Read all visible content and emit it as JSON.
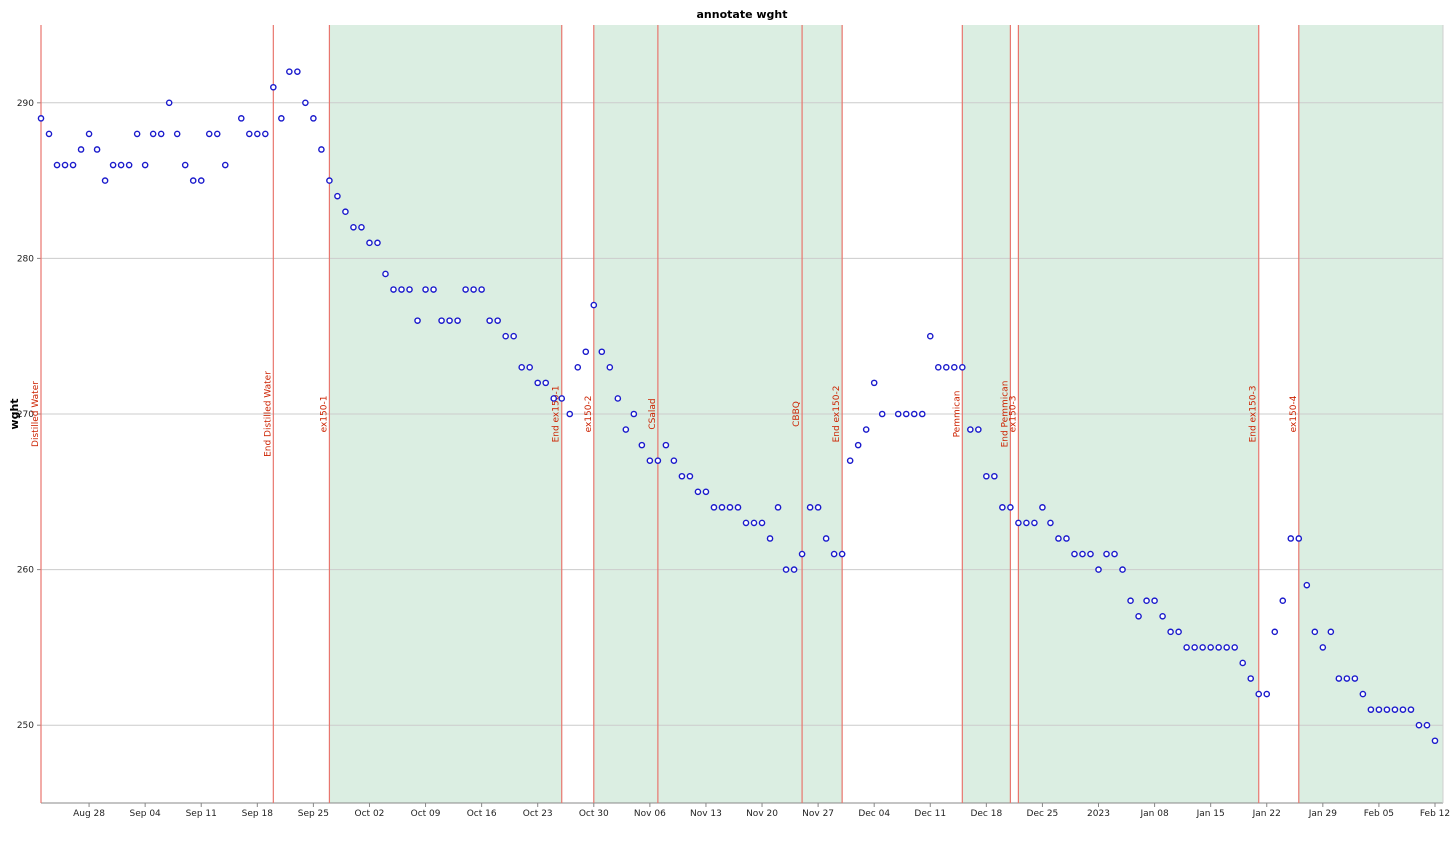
{
  "chart_data": {
    "type": "scatter",
    "title": "annotate wght",
    "xlabel": "",
    "ylabel": "wght",
    "x_start": "2022-08-22",
    "x_end": "2023-02-13",
    "ylim": [
      245,
      295
    ],
    "y_ticks": [
      250,
      260,
      270,
      280,
      290
    ],
    "grid": true,
    "x_ticks": [
      {
        "date": "2022-08-28",
        "label": "Aug 28"
      },
      {
        "date": "2022-09-04",
        "label": "Sep 04"
      },
      {
        "date": "2022-09-11",
        "label": "Sep 11"
      },
      {
        "date": "2022-09-18",
        "label": "Sep 18"
      },
      {
        "date": "2022-09-25",
        "label": "Sep 25"
      },
      {
        "date": "2022-10-02",
        "label": "Oct 02"
      },
      {
        "date": "2022-10-09",
        "label": "Oct 09"
      },
      {
        "date": "2022-10-16",
        "label": "Oct 16"
      },
      {
        "date": "2022-10-23",
        "label": "Oct 23"
      },
      {
        "date": "2022-10-30",
        "label": "Oct 30"
      },
      {
        "date": "2022-11-06",
        "label": "Nov 06"
      },
      {
        "date": "2022-11-13",
        "label": "Nov 13"
      },
      {
        "date": "2022-11-20",
        "label": "Nov 20"
      },
      {
        "date": "2022-11-27",
        "label": "Nov 27"
      },
      {
        "date": "2022-12-04",
        "label": "Dec 04"
      },
      {
        "date": "2022-12-11",
        "label": "Dec 11"
      },
      {
        "date": "2022-12-18",
        "label": "Dec 18"
      },
      {
        "date": "2022-12-25",
        "label": "Dec 25"
      },
      {
        "date": "2023-01-01",
        "label": "2023"
      },
      {
        "date": "2023-01-08",
        "label": "Jan 08"
      },
      {
        "date": "2023-01-15",
        "label": "Jan 15"
      },
      {
        "date": "2023-01-22",
        "label": "Jan 22"
      },
      {
        "date": "2023-01-29",
        "label": "Jan 29"
      },
      {
        "date": "2023-02-05",
        "label": "Feb 05"
      },
      {
        "date": "2023-02-12",
        "label": "Feb 12"
      }
    ],
    "shaded_ranges": [
      {
        "start": "2022-09-27",
        "end": "2022-10-26"
      },
      {
        "start": "2022-10-30",
        "end": "2022-11-07"
      },
      {
        "start": "2022-11-07",
        "end": "2022-11-25"
      },
      {
        "start": "2022-11-25",
        "end": "2022-11-30"
      },
      {
        "start": "2022-12-15",
        "end": "2022-12-21"
      },
      {
        "start": "2022-12-22",
        "end": "2023-01-21"
      },
      {
        "start": "2023-01-26",
        "end": "2023-02-13"
      }
    ],
    "annotations": [
      {
        "date": "2022-08-22",
        "label": "Distilled Water"
      },
      {
        "date": "2022-09-20",
        "label": "End Distilled Water"
      },
      {
        "date": "2022-09-27",
        "label": "ex150-1"
      },
      {
        "date": "2022-10-26",
        "label": "End ex150-1"
      },
      {
        "date": "2022-10-30",
        "label": "ex150-2"
      },
      {
        "date": "2022-11-07",
        "label": "CSalad"
      },
      {
        "date": "2022-11-25",
        "label": "CBBQ"
      },
      {
        "date": "2022-11-30",
        "label": "End ex150-2"
      },
      {
        "date": "2022-12-15",
        "label": "Pemmican"
      },
      {
        "date": "2022-12-21",
        "label": "End Pemmican"
      },
      {
        "date": "2022-12-22",
        "label": "ex150-3"
      },
      {
        "date": "2023-01-21",
        "label": "End ex150-3"
      },
      {
        "date": "2023-01-26",
        "label": "ex150-4"
      }
    ],
    "colors": {
      "points": "#1a1acc",
      "annotation_line": "#e8766e",
      "annotation_text": "#cc2200",
      "shade": "#dbeee2",
      "grid": "#cccccc"
    },
    "points": [
      {
        "x": "2022-08-22",
        "y": 289
      },
      {
        "x": "2022-08-23",
        "y": 288
      },
      {
        "x": "2022-08-24",
        "y": 286
      },
      {
        "x": "2022-08-25",
        "y": 286
      },
      {
        "x": "2022-08-26",
        "y": 286
      },
      {
        "x": "2022-08-27",
        "y": 287
      },
      {
        "x": "2022-08-28",
        "y": 288
      },
      {
        "x": "2022-08-29",
        "y": 287
      },
      {
        "x": "2022-08-30",
        "y": 285
      },
      {
        "x": "2022-08-31",
        "y": 286
      },
      {
        "x": "2022-09-01",
        "y": 286
      },
      {
        "x": "2022-09-02",
        "y": 286
      },
      {
        "x": "2022-09-03",
        "y": 288
      },
      {
        "x": "2022-09-04",
        "y": 286
      },
      {
        "x": "2022-09-05",
        "y": 288
      },
      {
        "x": "2022-09-06",
        "y": 288
      },
      {
        "x": "2022-09-07",
        "y": 290
      },
      {
        "x": "2022-09-08",
        "y": 288
      },
      {
        "x": "2022-09-09",
        "y": 286
      },
      {
        "x": "2022-09-10",
        "y": 285
      },
      {
        "x": "2022-09-11",
        "y": 285
      },
      {
        "x": "2022-09-12",
        "y": 288
      },
      {
        "x": "2022-09-13",
        "y": 288
      },
      {
        "x": "2022-09-14",
        "y": 286
      },
      {
        "x": "2022-09-16",
        "y": 289
      },
      {
        "x": "2022-09-17",
        "y": 288
      },
      {
        "x": "2022-09-18",
        "y": 288
      },
      {
        "x": "2022-09-19",
        "y": 288
      },
      {
        "x": "2022-09-20",
        "y": 291
      },
      {
        "x": "2022-09-21",
        "y": 289
      },
      {
        "x": "2022-09-22",
        "y": 292
      },
      {
        "x": "2022-09-23",
        "y": 292
      },
      {
        "x": "2022-09-24",
        "y": 290
      },
      {
        "x": "2022-09-25",
        "y": 289
      },
      {
        "x": "2022-09-26",
        "y": 287
      },
      {
        "x": "2022-09-27",
        "y": 285
      },
      {
        "x": "2022-09-28",
        "y": 284
      },
      {
        "x": "2022-09-29",
        "y": 283
      },
      {
        "x": "2022-09-30",
        "y": 282
      },
      {
        "x": "2022-10-01",
        "y": 282
      },
      {
        "x": "2022-10-02",
        "y": 281
      },
      {
        "x": "2022-10-03",
        "y": 281
      },
      {
        "x": "2022-10-04",
        "y": 279
      },
      {
        "x": "2022-10-05",
        "y": 278
      },
      {
        "x": "2022-10-06",
        "y": 278
      },
      {
        "x": "2022-10-07",
        "y": 278
      },
      {
        "x": "2022-10-08",
        "y": 276
      },
      {
        "x": "2022-10-09",
        "y": 278
      },
      {
        "x": "2022-10-10",
        "y": 278
      },
      {
        "x": "2022-10-11",
        "y": 276
      },
      {
        "x": "2022-10-12",
        "y": 276
      },
      {
        "x": "2022-10-13",
        "y": 276
      },
      {
        "x": "2022-10-14",
        "y": 278
      },
      {
        "x": "2022-10-15",
        "y": 278
      },
      {
        "x": "2022-10-16",
        "y": 278
      },
      {
        "x": "2022-10-17",
        "y": 276
      },
      {
        "x": "2022-10-18",
        "y": 276
      },
      {
        "x": "2022-10-19",
        "y": 275
      },
      {
        "x": "2022-10-20",
        "y": 275
      },
      {
        "x": "2022-10-21",
        "y": 273
      },
      {
        "x": "2022-10-22",
        "y": 273
      },
      {
        "x": "2022-10-23",
        "y": 272
      },
      {
        "x": "2022-10-24",
        "y": 272
      },
      {
        "x": "2022-10-25",
        "y": 271
      },
      {
        "x": "2022-10-26",
        "y": 271
      },
      {
        "x": "2022-10-27",
        "y": 270
      },
      {
        "x": "2022-10-28",
        "y": 273
      },
      {
        "x": "2022-10-29",
        "y": 274
      },
      {
        "x": "2022-10-30",
        "y": 277
      },
      {
        "x": "2022-10-31",
        "y": 274
      },
      {
        "x": "2022-11-01",
        "y": 273
      },
      {
        "x": "2022-11-02",
        "y": 271
      },
      {
        "x": "2022-11-03",
        "y": 269
      },
      {
        "x": "2022-11-04",
        "y": 270
      },
      {
        "x": "2022-11-05",
        "y": 268
      },
      {
        "x": "2022-11-06",
        "y": 267
      },
      {
        "x": "2022-11-07",
        "y": 267
      },
      {
        "x": "2022-11-08",
        "y": 268
      },
      {
        "x": "2022-11-09",
        "y": 267
      },
      {
        "x": "2022-11-10",
        "y": 266
      },
      {
        "x": "2022-11-11",
        "y": 266
      },
      {
        "x": "2022-11-12",
        "y": 265
      },
      {
        "x": "2022-11-13",
        "y": 265
      },
      {
        "x": "2022-11-14",
        "y": 264
      },
      {
        "x": "2022-11-15",
        "y": 264
      },
      {
        "x": "2022-11-16",
        "y": 264
      },
      {
        "x": "2022-11-17",
        "y": 264
      },
      {
        "x": "2022-11-18",
        "y": 263
      },
      {
        "x": "2022-11-19",
        "y": 263
      },
      {
        "x": "2022-11-20",
        "y": 263
      },
      {
        "x": "2022-11-21",
        "y": 262
      },
      {
        "x": "2022-11-22",
        "y": 264
      },
      {
        "x": "2022-11-23",
        "y": 260
      },
      {
        "x": "2022-11-24",
        "y": 260
      },
      {
        "x": "2022-11-25",
        "y": 261
      },
      {
        "x": "2022-11-26",
        "y": 264
      },
      {
        "x": "2022-11-27",
        "y": 264
      },
      {
        "x": "2022-11-28",
        "y": 262
      },
      {
        "x": "2022-11-29",
        "y": 261
      },
      {
        "x": "2022-11-30",
        "y": 261
      },
      {
        "x": "2022-12-01",
        "y": 267
      },
      {
        "x": "2022-12-02",
        "y": 268
      },
      {
        "x": "2022-12-03",
        "y": 269
      },
      {
        "x": "2022-12-04",
        "y": 272
      },
      {
        "x": "2022-12-05",
        "y": 270
      },
      {
        "x": "2022-12-07",
        "y": 270
      },
      {
        "x": "2022-12-08",
        "y": 270
      },
      {
        "x": "2022-12-09",
        "y": 270
      },
      {
        "x": "2022-12-10",
        "y": 270
      },
      {
        "x": "2022-12-11",
        "y": 275
      },
      {
        "x": "2022-12-12",
        "y": 273
      },
      {
        "x": "2022-12-13",
        "y": 273
      },
      {
        "x": "2022-12-14",
        "y": 273
      },
      {
        "x": "2022-12-15",
        "y": 273
      },
      {
        "x": "2022-12-16",
        "y": 269
      },
      {
        "x": "2022-12-17",
        "y": 269
      },
      {
        "x": "2022-12-18",
        "y": 266
      },
      {
        "x": "2022-12-19",
        "y": 266
      },
      {
        "x": "2022-12-20",
        "y": 264
      },
      {
        "x": "2022-12-21",
        "y": 264
      },
      {
        "x": "2022-12-22",
        "y": 263
      },
      {
        "x": "2022-12-23",
        "y": 263
      },
      {
        "x": "2022-12-24",
        "y": 263
      },
      {
        "x": "2022-12-25",
        "y": 264
      },
      {
        "x": "2022-12-26",
        "y": 263
      },
      {
        "x": "2022-12-27",
        "y": 262
      },
      {
        "x": "2022-12-28",
        "y": 262
      },
      {
        "x": "2022-12-29",
        "y": 261
      },
      {
        "x": "2022-12-30",
        "y": 261
      },
      {
        "x": "2022-12-31",
        "y": 261
      },
      {
        "x": "2023-01-01",
        "y": 260
      },
      {
        "x": "2023-01-02",
        "y": 261
      },
      {
        "x": "2023-01-03",
        "y": 261
      },
      {
        "x": "2023-01-04",
        "y": 260
      },
      {
        "x": "2023-01-05",
        "y": 258
      },
      {
        "x": "2023-01-06",
        "y": 257
      },
      {
        "x": "2023-01-07",
        "y": 258
      },
      {
        "x": "2023-01-08",
        "y": 258
      },
      {
        "x": "2023-01-09",
        "y": 257
      },
      {
        "x": "2023-01-10",
        "y": 256
      },
      {
        "x": "2023-01-11",
        "y": 256
      },
      {
        "x": "2023-01-12",
        "y": 255
      },
      {
        "x": "2023-01-13",
        "y": 255
      },
      {
        "x": "2023-01-14",
        "y": 255
      },
      {
        "x": "2023-01-15",
        "y": 255
      },
      {
        "x": "2023-01-16",
        "y": 255
      },
      {
        "x": "2023-01-17",
        "y": 255
      },
      {
        "x": "2023-01-18",
        "y": 255
      },
      {
        "x": "2023-01-19",
        "y": 254
      },
      {
        "x": "2023-01-20",
        "y": 253
      },
      {
        "x": "2023-01-21",
        "y": 252
      },
      {
        "x": "2023-01-22",
        "y": 252
      },
      {
        "x": "2023-01-23",
        "y": 256
      },
      {
        "x": "2023-01-24",
        "y": 258
      },
      {
        "x": "2023-01-25",
        "y": 262
      },
      {
        "x": "2023-01-26",
        "y": 262
      },
      {
        "x": "2023-01-27",
        "y": 259
      },
      {
        "x": "2023-01-28",
        "y": 256
      },
      {
        "x": "2023-01-29",
        "y": 255
      },
      {
        "x": "2023-01-30",
        "y": 256
      },
      {
        "x": "2023-01-31",
        "y": 253
      },
      {
        "x": "2023-02-01",
        "y": 253
      },
      {
        "x": "2023-02-02",
        "y": 253
      },
      {
        "x": "2023-02-03",
        "y": 252
      },
      {
        "x": "2023-02-04",
        "y": 251
      },
      {
        "x": "2023-02-05",
        "y": 251
      },
      {
        "x": "2023-02-06",
        "y": 251
      },
      {
        "x": "2023-02-07",
        "y": 251
      },
      {
        "x": "2023-02-08",
        "y": 251
      },
      {
        "x": "2023-02-09",
        "y": 251
      },
      {
        "x": "2023-02-10",
        "y": 250
      },
      {
        "x": "2023-02-11",
        "y": 250
      },
      {
        "x": "2023-02-12",
        "y": 249
      }
    ]
  }
}
